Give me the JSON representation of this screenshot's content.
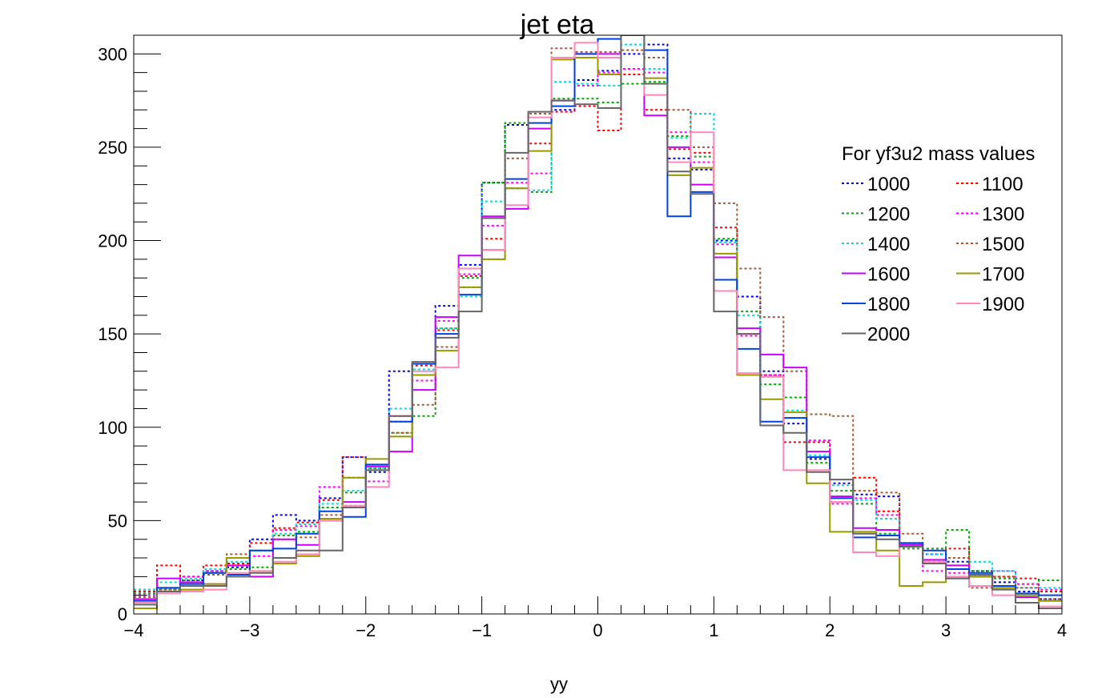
{
  "chart_data": {
    "type": "line",
    "title": "jet eta",
    "xlabel": "yy",
    "ylabel": "",
    "xlim": [
      -4,
      4
    ],
    "ylim": [
      0,
      310
    ],
    "x_ticks": [
      "−4",
      "−3",
      "−2",
      "−1",
      "0",
      "1",
      "2",
      "3",
      "4"
    ],
    "x_tick_values": [
      -4,
      -3,
      -2,
      -1,
      0,
      1,
      2,
      3,
      4
    ],
    "y_ticks": [
      "0",
      "50",
      "100",
      "150",
      "200",
      "250",
      "300"
    ],
    "y_tick_values": [
      0,
      50,
      100,
      150,
      200,
      250,
      300
    ],
    "bin_edges": [
      -4.0,
      -3.8,
      -3.6,
      -3.4,
      -3.2,
      -3.0,
      -2.8,
      -2.6,
      -2.4,
      -2.2,
      -2.0,
      -1.8,
      -1.6,
      -1.4,
      -1.2,
      -1.0,
      -0.8,
      -0.6,
      -0.4,
      -0.2,
      0.0,
      0.2,
      0.4,
      0.6,
      0.8,
      1.0,
      1.2,
      1.4,
      1.6,
      1.8,
      2.0,
      2.2,
      2.4,
      2.6,
      2.8,
      3.0,
      3.2,
      3.4,
      3.6,
      3.8,
      4.0
    ],
    "legend_title": "For yf3u2 mass values",
    "legend_position": "right",
    "series": [
      {
        "name": "1000",
        "color": "#0000ff",
        "dashed": true,
        "values": [
          13,
          14,
          18,
          23,
          25,
          40,
          53,
          50,
          62,
          84,
          76,
          130,
          134,
          165,
          187,
          231,
          262,
          268,
          270,
          286,
          291,
          300,
          305,
          244,
          238,
          200,
          170,
          130,
          102,
          83,
          70,
          64,
          63,
          37,
          32,
          28,
          23,
          17,
          12,
          8
        ]
      },
      {
        "name": "1100",
        "color": "#ff0000",
        "dashed": true,
        "values": [
          12,
          26,
          20,
          26,
          27,
          38,
          46,
          49,
          61,
          84,
          78,
          106,
          133,
          152,
          181,
          201,
          228,
          252,
          269,
          272,
          259,
          289,
          270,
          249,
          247,
          207,
          150,
          128,
          92,
          92,
          60,
          73,
          55,
          38,
          28,
          35,
          20,
          20,
          19,
          12
        ]
      },
      {
        "name": "1200",
        "color": "#00aa00",
        "dashed": true,
        "values": [
          11,
          13,
          18,
          22,
          24,
          25,
          42,
          44,
          57,
          65,
          78,
          97,
          106,
          153,
          180,
          231,
          263,
          226,
          276,
          276,
          274,
          284,
          285,
          256,
          245,
          201,
          162,
          123,
          116,
          81,
          66,
          59,
          43,
          35,
          35,
          45,
          23,
          19,
          16,
          18
        ]
      },
      {
        "name": "1300",
        "color": "#ff00ff",
        "dashed": true,
        "values": [
          10,
          14,
          20,
          23,
          30,
          31,
          45,
          47,
          68,
          73,
          71,
          103,
          125,
          157,
          182,
          208,
          231,
          236,
          275,
          283,
          290,
          292,
          290,
          258,
          242,
          198,
          149,
          128,
          105,
          93,
          59,
          62,
          53,
          37,
          23,
          22,
          20,
          23,
          16,
          13
        ]
      },
      {
        "name": "1400",
        "color": "#00dddd",
        "dashed": true,
        "values": [
          13,
          17,
          19,
          24,
          28,
          34,
          43,
          48,
          59,
          66,
          78,
          110,
          131,
          153,
          170,
          221,
          228,
          227,
          285,
          284,
          283,
          305,
          292,
          255,
          268,
          199,
          160,
          127,
          109,
          85,
          69,
          61,
          51,
          38,
          32,
          26,
          28,
          23,
          14,
          14
        ]
      },
      {
        "name": "1500",
        "color": "#aa5533",
        "dashed": true,
        "values": [
          9,
          13,
          17,
          21,
          32,
          34,
          40,
          41,
          53,
          58,
          80,
          97,
          112,
          143,
          175,
          190,
          244,
          268,
          303,
          301,
          301,
          302,
          298,
          270,
          250,
          220,
          185,
          159,
          130,
          107,
          106,
          66,
          65,
          43,
          27,
          30,
          14,
          20,
          14,
          8
        ]
      },
      {
        "name": "1600",
        "color": "#cc00ff",
        "dashed": false,
        "values": [
          8,
          19,
          17,
          16,
          26,
          20,
          40,
          37,
          50,
          60,
          79,
          87,
          120,
          159,
          192,
          213,
          217,
          260,
          275,
          300,
          300,
          310,
          267,
          250,
          230,
          191,
          153,
          139,
          132,
          87,
          63,
          46,
          45,
          37,
          29,
          26,
          20,
          15,
          9,
          7
        ]
      },
      {
        "name": "1700",
        "color": "#999900",
        "dashed": false,
        "values": [
          3,
          12,
          13,
          16,
          30,
          23,
          27,
          31,
          51,
          73,
          83,
          95,
          128,
          141,
          175,
          190,
          228,
          248,
          297,
          298,
          289,
          310,
          287,
          235,
          239,
          193,
          128,
          115,
          108,
          70,
          44,
          44,
          34,
          15,
          17,
          19,
          20,
          14,
          10,
          7
        ]
      },
      {
        "name": "1800",
        "color": "#0044dd",
        "dashed": false,
        "values": [
          7,
          14,
          16,
          22,
          21,
          34,
          35,
          43,
          55,
          52,
          80,
          103,
          134,
          150,
          171,
          195,
          233,
          263,
          272,
          300,
          308,
          310,
          302,
          213,
          226,
          179,
          142,
          103,
          105,
          84,
          62,
          41,
          42,
          38,
          34,
          24,
          22,
          15,
          11,
          10
        ]
      },
      {
        "name": "1900",
        "color": "#ff88bb",
        "dashed": false,
        "values": [
          6,
          11,
          12,
          13,
          22,
          23,
          28,
          32,
          50,
          58,
          68,
          106,
          130,
          132,
          185,
          195,
          219,
          266,
          298,
          306,
          298,
          310,
          278,
          242,
          258,
          173,
          129,
          127,
          77,
          77,
          60,
          33,
          31,
          36,
          28,
          20,
          15,
          10,
          6,
          4
        ]
      },
      {
        "name": "2000",
        "color": "#666666",
        "dashed": false,
        "values": [
          5,
          12,
          15,
          15,
          20,
          22,
          30,
          34,
          34,
          57,
          77,
          106,
          135,
          148,
          162,
          212,
          247,
          269,
          275,
          273,
          271,
          310,
          284,
          237,
          225,
          162,
          150,
          101,
          97,
          76,
          72,
          43,
          40,
          36,
          27,
          19,
          21,
          13,
          6,
          3
        ]
      }
    ]
  }
}
